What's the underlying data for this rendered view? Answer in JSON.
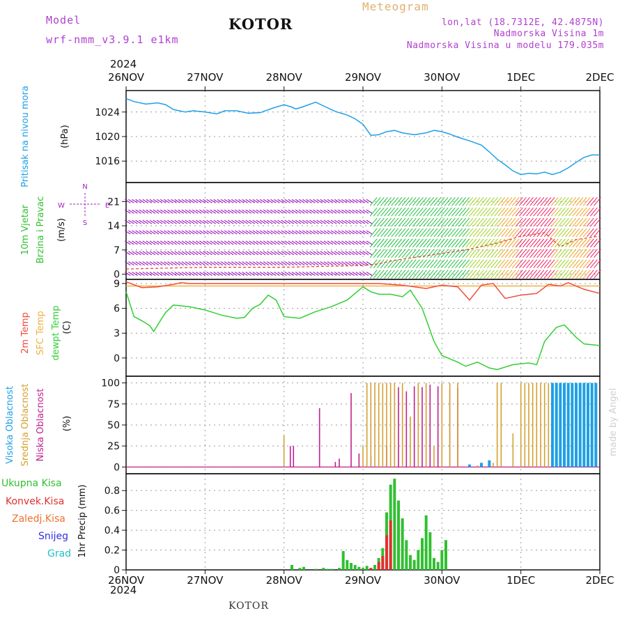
{
  "header": {
    "model_label": "Model",
    "model_name": "wrf-nmm_v3.9.1 e1km",
    "title": "KOTOR",
    "meteogram": "Meteogram",
    "coords": "lon,lat (18.7312E, 42.4875N)",
    "elevation": "Nadmorska Visina 1m",
    "model_elevation": "Nadmorska Visina u modelu 179.035m",
    "year_top": "2024",
    "year_bottom": "2024",
    "footer": "KOTOR",
    "watermark": "made by Angel"
  },
  "colors": {
    "pressure": "#1ea0e6",
    "temp2m": "#f04a3a",
    "sfc_temp": "#f0b040",
    "dewpoint": "#30d030",
    "high_cloud": "#1ea0e6",
    "mid_cloud": "#d4a030",
    "low_cloud": "#c02090",
    "total_precip": "#30c030",
    "convective": "#e03030",
    "freezing": "#f07030",
    "snow": "#3030e0",
    "hail": "#20c0c0",
    "wind_label": "#30c030",
    "wind_purple": "#a020c0"
  },
  "chart_data": [
    {
      "type": "line",
      "panel": "pressure",
      "ylabel": "Pritisak na nivou mora",
      "unit": "(hPa)",
      "x_tick_labels": [
        "26NOV",
        "27NOV",
        "28NOV",
        "29NOV",
        "30NOV",
        "1DEC",
        "2DEC"
      ],
      "yticks": [
        1016,
        1020,
        1024
      ],
      "ylim": [
        1012.5,
        1027.5
      ],
      "series": [
        {
          "name": "Pritisak na nivou mora",
          "x": [
            0,
            0.1,
            0.25,
            0.4,
            0.5,
            0.6,
            0.75,
            0.85,
            1.0,
            1.15,
            1.25,
            1.4,
            1.55,
            1.7,
            1.85,
            2.0,
            2.1,
            2.15,
            2.25,
            2.4,
            2.5,
            2.65,
            2.8,
            2.9,
            3.0,
            3.1,
            3.2,
            3.3,
            3.4,
            3.5,
            3.65,
            3.8,
            3.9,
            4.0,
            4.1,
            4.2,
            4.35,
            4.5,
            4.6,
            4.7,
            4.8,
            4.9,
            5.0,
            5.1,
            5.2,
            5.3,
            5.4,
            5.5,
            5.6,
            5.7,
            5.8,
            5.9,
            6.0
          ],
          "y": [
            1026.2,
            1025.7,
            1025.3,
            1025.5,
            1025.2,
            1024.4,
            1024.0,
            1024.2,
            1024.0,
            1023.7,
            1024.2,
            1024.2,
            1023.8,
            1023.9,
            1024.6,
            1025.2,
            1024.8,
            1024.5,
            1024.9,
            1025.6,
            1025.0,
            1024.1,
            1023.5,
            1022.9,
            1022.0,
            1020.2,
            1020.3,
            1020.8,
            1021.0,
            1020.6,
            1020.3,
            1020.6,
            1021.0,
            1020.8,
            1020.4,
            1019.9,
            1019.3,
            1018.6,
            1017.5,
            1016.3,
            1015.4,
            1014.4,
            1013.8,
            1014.0,
            1013.9,
            1014.2,
            1013.8,
            1014.2,
            1014.9,
            1015.8,
            1016.6,
            1017.0,
            1017.0
          ]
        }
      ]
    },
    {
      "type": "scatter",
      "panel": "wind",
      "ylabel": "10m Vjetar Brzina i Pravac",
      "unit": "(m/s)",
      "yticks": [
        0,
        7,
        14,
        21
      ],
      "ylim": [
        -1.5,
        26.5
      ],
      "compass": {
        "north": "N",
        "south": "S",
        "east": "E",
        "west": "W"
      },
      "series": [
        {
          "name": "Brzina",
          "x": [
            0,
            1,
            2,
            3,
            3.2,
            3.4,
            3.7,
            4.0,
            4.3,
            4.7,
            5.0,
            5.3,
            5.5,
            5.7,
            6.0
          ],
          "y": [
            1.5,
            2.0,
            2.0,
            2.5,
            3.0,
            4.0,
            5.0,
            6.0,
            7.0,
            9.0,
            11.0,
            12.0,
            8.0,
            10.0,
            11.0
          ]
        }
      ]
    },
    {
      "type": "line",
      "panel": "temperature",
      "ylabel": [
        "2m Temp",
        "SFC Temp",
        "dewpt Temp"
      ],
      "unit": "(C)",
      "yticks": [
        0,
        3,
        6,
        9
      ],
      "ylim": [
        -2.2,
        9.5
      ],
      "series": [
        {
          "name": "2m Temp",
          "x": [
            0,
            0.2,
            0.4,
            0.6,
            0.7,
            0.8,
            1.0,
            1.5,
            2.0,
            2.5,
            3.0,
            3.2,
            3.5,
            3.8,
            4.0,
            4.2,
            4.35,
            4.5,
            4.65,
            4.8,
            5.0,
            5.2,
            5.35,
            5.5,
            5.6,
            5.8,
            6.0
          ],
          "y": [
            9.2,
            8.5,
            8.6,
            8.9,
            9.1,
            9.0,
            9.0,
            9.0,
            9.0,
            9.0,
            9.0,
            9.0,
            8.8,
            8.4,
            8.8,
            8.6,
            7.0,
            8.8,
            9.0,
            7.2,
            7.6,
            7.8,
            8.9,
            8.7,
            9.1,
            8.3,
            7.8
          ]
        },
        {
          "name": "SFC Temp",
          "x": [
            0,
            6.0
          ],
          "y": [
            8.7,
            8.7
          ]
        },
        {
          "name": "dewpt Temp",
          "x": [
            0,
            0.1,
            0.2,
            0.3,
            0.35,
            0.4,
            0.5,
            0.6,
            0.8,
            1.0,
            1.2,
            1.4,
            1.5,
            1.6,
            1.7,
            1.8,
            1.9,
            2.0,
            2.2,
            2.4,
            2.6,
            2.8,
            3.0,
            3.1,
            3.2,
            3.35,
            3.5,
            3.6,
            3.75,
            3.9,
            4.0,
            4.2,
            4.3,
            4.45,
            4.6,
            4.7,
            4.9,
            5.0,
            5.1,
            5.2,
            5.3,
            5.45,
            5.55,
            5.7,
            5.8,
            6.0
          ],
          "y": [
            8.0,
            5.0,
            4.5,
            3.9,
            3.2,
            4.0,
            5.5,
            6.4,
            6.2,
            5.8,
            5.2,
            4.8,
            4.9,
            6.0,
            6.5,
            7.6,
            7.0,
            5.0,
            4.8,
            5.6,
            6.2,
            7.0,
            8.6,
            8.0,
            7.7,
            7.7,
            7.4,
            8.2,
            6.0,
            2.0,
            0.3,
            -0.5,
            -1.0,
            -0.5,
            -1.2,
            -1.4,
            -0.8,
            -0.7,
            -0.6,
            -0.8,
            2.0,
            3.7,
            4.0,
            2.5,
            1.7,
            1.5
          ]
        }
      ]
    },
    {
      "type": "bar",
      "panel": "clouds",
      "ylabel": [
        "Visoka Oblacnost",
        "Srednja Oblacnost",
        "Niska Oblacnost"
      ],
      "unit": "(%)",
      "yticks": [
        0,
        25,
        50,
        75,
        100
      ],
      "ylim": [
        -8,
        108
      ],
      "series": [
        {
          "name": "Niska Oblacnost",
          "x": [
            2.08,
            2.12,
            2.45,
            2.65,
            2.7,
            2.85,
            2.95,
            3.1,
            3.3,
            3.45,
            3.55,
            3.65,
            3.75,
            3.85,
            3.95,
            4.1,
            4.2
          ],
          "values": [
            25,
            25,
            70,
            6,
            10,
            88,
            16,
            12,
            25,
            95,
            90,
            96,
            95,
            98,
            96,
            92,
            94
          ]
        },
        {
          "name": "Srednja Oblacnost",
          "x": [
            2.0,
            3.0,
            3.05,
            3.1,
            3.15,
            3.2,
            3.25,
            3.3,
            3.35,
            3.4,
            3.5,
            3.6,
            3.7,
            3.8,
            3.9,
            4.0,
            4.1,
            4.2,
            4.45,
            4.65,
            4.7,
            4.75,
            4.9,
            5.0,
            5.05,
            5.1,
            5.15,
            5.2,
            5.25,
            5.3,
            5.35
          ],
          "values": [
            38,
            25,
            100,
            100,
            100,
            100,
            100,
            100,
            100,
            100,
            100,
            60,
            100,
            100,
            25,
            100,
            100,
            100,
            2,
            5,
            100,
            100,
            40,
            100,
            100,
            100,
            100,
            100,
            100,
            100,
            100
          ]
        },
        {
          "name": "Visoka Oblacnost",
          "x": [
            4.35,
            4.5,
            4.6,
            5.4,
            5.45,
            5.5,
            5.55,
            5.6,
            5.65,
            5.7,
            5.75,
            5.8,
            5.85,
            5.9,
            5.95
          ],
          "values": [
            3,
            5,
            8,
            100,
            100,
            100,
            100,
            100,
            100,
            100,
            100,
            100,
            100,
            100,
            100
          ]
        }
      ]
    },
    {
      "type": "bar",
      "panel": "precip",
      "ylabel": "1hr Precip",
      "unit": "(mm)",
      "legend": [
        "Ukupna Kisa",
        "Konvek.Kisa",
        "Zaledj.Kisa",
        "Snijeg",
        "Grad"
      ],
      "yticks": [
        0,
        0.2,
        0.4,
        0.6,
        0.8
      ],
      "ylim": [
        0,
        0.97
      ],
      "series": [
        {
          "name": "Ukupna Kisa",
          "x": [
            2.1,
            2.2,
            2.25,
            2.4,
            2.5,
            2.55,
            2.6,
            2.7,
            2.75,
            2.8,
            2.85,
            2.9,
            2.95,
            3.0,
            3.05,
            3.1,
            3.15,
            3.2,
            3.25,
            3.3,
            3.35,
            3.4,
            3.45,
            3.5,
            3.55,
            3.6,
            3.65,
            3.7,
            3.75,
            3.8,
            3.85,
            3.9,
            3.95,
            4.0,
            4.05
          ],
          "values": [
            0.05,
            0.02,
            0.03,
            0.01,
            0.02,
            0.01,
            0.01,
            0.02,
            0.19,
            0.1,
            0.07,
            0.05,
            0.03,
            0.02,
            0.04,
            0.01,
            0.05,
            0.12,
            0.22,
            0.58,
            0.86,
            0.92,
            0.7,
            0.52,
            0.3,
            0.15,
            0.1,
            0.2,
            0.32,
            0.55,
            0.38,
            0.12,
            0.08,
            0.2,
            0.3
          ]
        },
        {
          "name": "Konvek.Kisa",
          "x": [
            3.1,
            3.2,
            3.25,
            3.3,
            3.35
          ],
          "values": [
            0.02,
            0.08,
            0.14,
            0.35,
            0.5
          ]
        }
      ]
    }
  ]
}
